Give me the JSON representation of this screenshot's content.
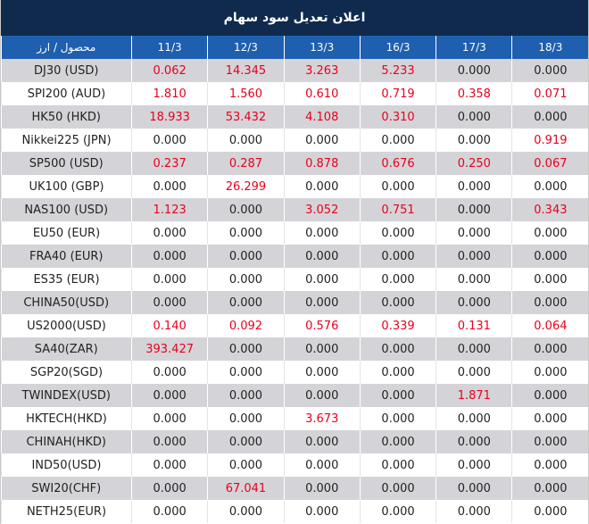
{
  "title": "اعلان تعديل سود سهام",
  "header": {
    "instrument_label": "محصول / ارز",
    "dates": [
      "11/3",
      "12/3",
      "13/3",
      "16/3",
      "17/3",
      "18/3"
    ]
  },
  "colors": {
    "title_bg": "#0f2a4d",
    "header_bg": "#1f5fb0",
    "positive": "#e8001c",
    "row_alt": "#d4d4d8"
  },
  "rows": [
    {
      "name": "DJ30 (USD)",
      "values": [
        "0.062",
        "14.345",
        "3.263",
        "5.233",
        "0.000",
        "0.000"
      ]
    },
    {
      "name": "SPI200 (AUD)",
      "values": [
        "1.810",
        "1.560",
        "0.610",
        "0.719",
        "0.358",
        "0.071"
      ]
    },
    {
      "name": "HK50 (HKD)",
      "values": [
        "18.933",
        "53.432",
        "4.108",
        "0.310",
        "0.000",
        "0.000"
      ]
    },
    {
      "name": "Nikkei225 (JPN)",
      "values": [
        "0.000",
        "0.000",
        "0.000",
        "0.000",
        "0.000",
        "0.919"
      ]
    },
    {
      "name": "SP500 (USD)",
      "values": [
        "0.237",
        "0.287",
        "0.878",
        "0.676",
        "0.250",
        "0.067"
      ]
    },
    {
      "name": "UK100 (GBP)",
      "values": [
        "0.000",
        "26.299",
        "0.000",
        "0.000",
        "0.000",
        "0.000"
      ]
    },
    {
      "name": "NAS100 (USD)",
      "values": [
        "1.123",
        "0.000",
        "3.052",
        "0.751",
        "0.000",
        "0.343"
      ]
    },
    {
      "name": "EU50 (EUR)",
      "values": [
        "0.000",
        "0.000",
        "0.000",
        "0.000",
        "0.000",
        "0.000"
      ]
    },
    {
      "name": "FRA40 (EUR)",
      "values": [
        "0.000",
        "0.000",
        "0.000",
        "0.000",
        "0.000",
        "0.000"
      ]
    },
    {
      "name": "ES35 (EUR)",
      "values": [
        "0.000",
        "0.000",
        "0.000",
        "0.000",
        "0.000",
        "0.000"
      ]
    },
    {
      "name": "CHINA50(USD)",
      "values": [
        "0.000",
        "0.000",
        "0.000",
        "0.000",
        "0.000",
        "0.000"
      ]
    },
    {
      "name": "US2000(USD)",
      "values": [
        "0.140",
        "0.092",
        "0.576",
        "0.339",
        "0.131",
        "0.064"
      ]
    },
    {
      "name": "SA40(ZAR)",
      "values": [
        "393.427",
        "0.000",
        "0.000",
        "0.000",
        "0.000",
        "0.000"
      ]
    },
    {
      "name": "SGP20(SGD)",
      "values": [
        "0.000",
        "0.000",
        "0.000",
        "0.000",
        "0.000",
        "0.000"
      ]
    },
    {
      "name": "TWINDEX(USD)",
      "values": [
        "0.000",
        "0.000",
        "0.000",
        "0.000",
        "1.871",
        "0.000"
      ]
    },
    {
      "name": "HKTECH(HKD)",
      "values": [
        "0.000",
        "0.000",
        "3.673",
        "0.000",
        "0.000",
        "0.000"
      ]
    },
    {
      "name": "CHINAH(HKD)",
      "values": [
        "0.000",
        "0.000",
        "0.000",
        "0.000",
        "0.000",
        "0.000"
      ]
    },
    {
      "name": "IND50(USD)",
      "values": [
        "0.000",
        "0.000",
        "0.000",
        "0.000",
        "0.000",
        "0.000"
      ]
    },
    {
      "name": "SWI20(CHF)",
      "values": [
        "0.000",
        "67.041",
        "0.000",
        "0.000",
        "0.000",
        "0.000"
      ]
    },
    {
      "name": "NETH25(EUR)",
      "values": [
        "0.000",
        "0.000",
        "0.000",
        "0.000",
        "0.000",
        "0.000"
      ]
    }
  ]
}
